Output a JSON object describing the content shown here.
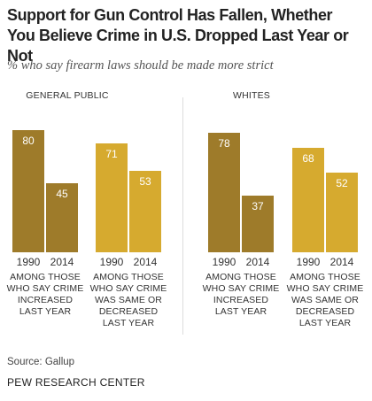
{
  "title": "Support for Gun Control Has Fallen, Whether You Believe Crime in U.S. Dropped Last Year or Not",
  "subtitle": "% who say firearm laws should be made more strict",
  "source": "Source: Gallup",
  "organization": "PEW RESEARCH CENTER",
  "colors": {
    "increased": "#9e7b2a",
    "same_or_decreased": "#d6aa2f"
  },
  "chart_data": [
    {
      "type": "bar",
      "title": "GENERAL PUBLIC",
      "groups": [
        {
          "label": "AMONG THOSE WHO SAY CRIME INCREASED LAST YEAR",
          "label_lines": [
            "AMONG THOSE",
            "WHO SAY CRIME",
            "INCREASED",
            "LAST YEAR"
          ],
          "categories": [
            "1990",
            "2014"
          ],
          "values": [
            80,
            45
          ]
        },
        {
          "label": "AMONG THOSE WHO SAY CRIME WAS SAME OR DECREASED LAST YEAR",
          "label_lines": [
            "AMONG THOSE",
            "WHO SAY CRIME",
            "WAS SAME OR",
            "DECREASED",
            "LAST YEAR"
          ],
          "categories": [
            "1990",
            "2014"
          ],
          "values": [
            71,
            53
          ]
        }
      ]
    },
    {
      "type": "bar",
      "title": "WHITES",
      "groups": [
        {
          "label": "AMONG THOSE WHO SAY CRIME INCREASED LAST YEAR",
          "label_lines": [
            "AMONG THOSE",
            "WHO SAY CRIME",
            "INCREASED",
            "LAST YEAR"
          ],
          "categories": [
            "1990",
            "2014"
          ],
          "values": [
            78,
            37
          ]
        },
        {
          "label": "AMONG THOSE WHO SAY CRIME WAS SAME OR DECREASED LAST YEAR",
          "label_lines": [
            "AMONG THOSE",
            "WHO SAY CRIME",
            "WAS SAME OR",
            "DECREASED",
            "LAST YEAR"
          ],
          "categories": [
            "1990",
            "2014"
          ],
          "values": [
            68,
            52
          ]
        }
      ]
    }
  ]
}
